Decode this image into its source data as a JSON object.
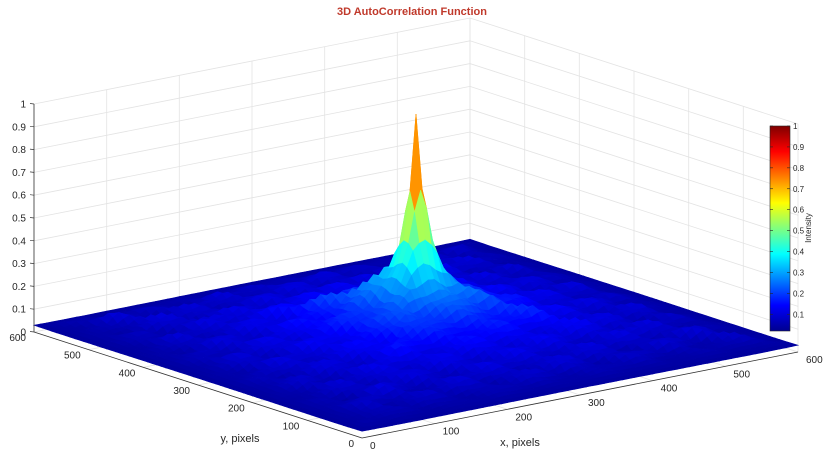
{
  "chart_data": {
    "type": "surface",
    "title": "3D AutoCorrelation Function",
    "xlabel": "x, pixels",
    "ylabel": "y, pixels",
    "zlabel": "",
    "xlim": [
      0,
      600
    ],
    "ylim": [
      0,
      600
    ],
    "zlim": [
      0,
      1
    ],
    "xticks": [
      "0",
      "100",
      "200",
      "300",
      "400",
      "500",
      "600"
    ],
    "yticks": [
      "0",
      "100",
      "200",
      "300",
      "400",
      "500",
      "600"
    ],
    "zticks": [
      "0",
      "0.1",
      "0.2",
      "0.3",
      "0.4",
      "0.5",
      "0.6",
      "0.7",
      "0.8",
      "0.9",
      "1"
    ],
    "grid": true,
    "colormap": "jet",
    "peak": {
      "x": 300,
      "y": 300,
      "z": 1.0
    },
    "background_level": 0.05,
    "shoulder_level": 0.3,
    "colorbar": {
      "label": "Intensity",
      "ticks": [
        "0.1",
        "0.2",
        "0.3",
        "0.4",
        "0.5",
        "0.6",
        "0.7",
        "0.8",
        "0.9",
        "1"
      ],
      "range": [
        0.02,
        1
      ]
    },
    "colors": {
      "title": "#c0392b",
      "grid": "#e3e3e3",
      "axis": "#333333"
    }
  }
}
